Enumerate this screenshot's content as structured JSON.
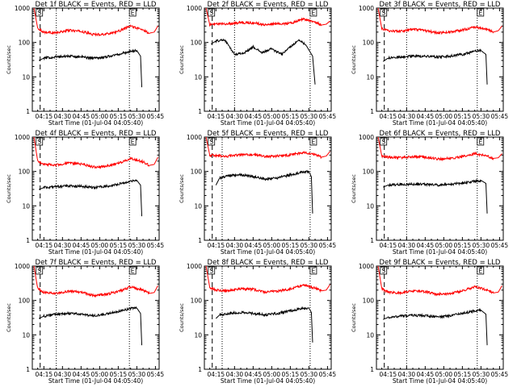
{
  "colors": {
    "events": "#000000",
    "lld": "#ff0000",
    "marker": "#000000"
  },
  "layout": {
    "rows": 3,
    "cols": 3
  },
  "panel_common": {
    "ylabel": "Counts/sec",
    "xlabel": "Start Time (01-Jul-04 04:05:40)",
    "yticks": [
      "1",
      "10",
      "100",
      "1000"
    ],
    "xticks": [
      "04:15",
      "04:30",
      "04:45",
      "05:00",
      "05:15",
      "05:30",
      "05:45"
    ],
    "marker_left": "S",
    "marker_right": "E"
  },
  "chart_data": [
    {
      "type": "line",
      "title": "Det 1f BLACK = Events, RED = LLD",
      "y_scale": "log",
      "ylim": [
        1,
        1000
      ],
      "xlim": [
        "04:05:40",
        "05:48:00"
      ],
      "ylabel": "Counts/sec",
      "xlabel": "Start Time (01-Jul-04 04:05:40)",
      "vlines": [
        "04:12:00",
        "04:25:00",
        "05:24:00"
      ],
      "series": [
        {
          "color": "red",
          "x": [
            "04:07:00",
            "04:10:00",
            "04:15:00",
            "04:25:00",
            "04:35:00",
            "04:45:00",
            "04:55:00",
            "05:05:00",
            "05:15:00",
            "05:25:00",
            "05:35:00",
            "05:40:00",
            "05:44:00",
            "05:47:00"
          ],
          "values": [
            1000,
            260,
            200,
            190,
            225,
            210,
            170,
            175,
            210,
            300,
            230,
            185,
            200,
            300
          ]
        },
        {
          "color": "black",
          "x": [
            "04:11:00",
            "04:15:00",
            "04:25:00",
            "04:35:00",
            "04:45:00",
            "04:55:00",
            "05:05:00",
            "05:15:00",
            "05:25:00",
            "05:30:00",
            "05:33:00",
            "05:34:00"
          ],
          "values": [
            30,
            35,
            38,
            40,
            38,
            35,
            38,
            45,
            55,
            58,
            40,
            5
          ]
        }
      ]
    },
    {
      "type": "line",
      "title": "Det 2f BLACK = Events, RED = LLD",
      "y_scale": "log",
      "ylim": [
        1,
        1000
      ],
      "xlim": [
        "04:05:40",
        "05:48:00"
      ],
      "ylabel": "Counts/sec",
      "xlabel": "Start Time (01-Jul-04 04:05:40)",
      "vlines": [
        "04:12:00",
        "04:30:00",
        "05:31:00"
      ],
      "series": [
        {
          "color": "red",
          "x": [
            "04:07:00",
            "04:10:00",
            "04:15:00",
            "04:25:00",
            "04:35:00",
            "04:45:00",
            "04:55:00",
            "05:05:00",
            "05:15:00",
            "05:25:00",
            "05:35:00",
            "05:40:00",
            "05:44:00",
            "05:47:00"
          ],
          "values": [
            1000,
            330,
            340,
            350,
            380,
            370,
            330,
            350,
            360,
            480,
            400,
            320,
            340,
            420
          ]
        },
        {
          "color": "black",
          "x": [
            "04:11:00",
            "04:15:00",
            "04:22:00",
            "04:30:00",
            "04:38:00",
            "04:45:00",
            "04:52:00",
            "05:00:00",
            "05:08:00",
            "05:15:00",
            "05:22:00",
            "05:28:00",
            "05:33:00",
            "05:35:00"
          ],
          "values": [
            90,
            110,
            120,
            45,
            50,
            75,
            50,
            65,
            45,
            75,
            120,
            80,
            40,
            6
          ]
        }
      ]
    },
    {
      "type": "line",
      "title": "Det 3f BLACK = Events, RED = LLD",
      "y_scale": "log",
      "ylim": [
        1,
        1000
      ],
      "xlim": [
        "04:05:40",
        "05:48:00"
      ],
      "ylabel": "Counts/sec",
      "xlabel": "Start Time (01-Jul-04 04:05:40)",
      "vlines": [
        "04:12:00",
        "04:30:00",
        "05:27:00"
      ],
      "series": [
        {
          "color": "red",
          "x": [
            "04:07:00",
            "04:10:00",
            "04:15:00",
            "04:25:00",
            "04:35:00",
            "04:45:00",
            "04:55:00",
            "05:05:00",
            "05:15:00",
            "05:25:00",
            "05:35:00",
            "05:40:00",
            "05:44:00",
            "05:47:00"
          ],
          "values": [
            1000,
            250,
            220,
            210,
            240,
            220,
            190,
            200,
            230,
            280,
            240,
            200,
            220,
            300
          ]
        },
        {
          "color": "black",
          "x": [
            "04:11:00",
            "04:15:00",
            "04:25:00",
            "04:35:00",
            "04:45:00",
            "04:55:00",
            "05:05:00",
            "05:15:00",
            "05:25:00",
            "05:30:00",
            "05:34:00",
            "05:35:00"
          ],
          "values": [
            28,
            35,
            38,
            40,
            40,
            38,
            40,
            45,
            55,
            58,
            45,
            6
          ]
        }
      ]
    },
    {
      "type": "line",
      "title": "Det 4f BLACK = Events, RED = LLD",
      "y_scale": "log",
      "ylim": [
        1,
        1000
      ],
      "xlim": [
        "04:05:40",
        "05:48:00"
      ],
      "ylabel": "Counts/sec",
      "xlabel": "Start Time (01-Jul-04 04:05:40)",
      "vlines": [
        "04:12:00",
        "04:25:00",
        "05:24:00"
      ],
      "series": [
        {
          "color": "red",
          "x": [
            "04:07:00",
            "04:10:00",
            "04:15:00",
            "04:25:00",
            "04:35:00",
            "04:45:00",
            "04:55:00",
            "05:05:00",
            "05:15:00",
            "05:25:00",
            "05:35:00",
            "05:40:00",
            "05:44:00",
            "05:47:00"
          ],
          "values": [
            1000,
            200,
            160,
            155,
            175,
            165,
            135,
            140,
            170,
            240,
            190,
            150,
            160,
            260
          ]
        },
        {
          "color": "black",
          "x": [
            "04:11:00",
            "04:15:00",
            "04:25:00",
            "04:35:00",
            "04:45:00",
            "04:55:00",
            "05:05:00",
            "05:15:00",
            "05:25:00",
            "05:30:00",
            "05:33:00",
            "05:34:00"
          ],
          "values": [
            30,
            34,
            36,
            38,
            37,
            34,
            37,
            43,
            52,
            55,
            40,
            5
          ]
        }
      ]
    },
    {
      "type": "line",
      "title": "Det 5f BLACK = Events, RED = LLD",
      "y_scale": "log",
      "ylim": [
        1,
        1000
      ],
      "xlim": [
        "04:05:40",
        "05:48:00"
      ],
      "ylabel": "Counts/sec",
      "xlabel": "Start Time (01-Jul-04 04:05:40)",
      "vlines": [
        "04:12:00",
        "04:20:00",
        "05:31:00"
      ],
      "series": [
        {
          "color": "red",
          "x": [
            "04:07:00",
            "04:10:00",
            "04:15:00",
            "04:25:00",
            "04:35:00",
            "04:45:00",
            "04:55:00",
            "05:05:00",
            "05:15:00",
            "05:25:00",
            "05:35:00",
            "05:40:00",
            "05:44:00",
            "05:47:00"
          ],
          "values": [
            1000,
            300,
            290,
            280,
            300,
            310,
            270,
            280,
            300,
            360,
            310,
            260,
            280,
            380
          ]
        },
        {
          "color": "black",
          "x": [
            "04:15:00",
            "04:18:00",
            "04:25:00",
            "04:35:00",
            "04:45:00",
            "04:55:00",
            "05:05:00",
            "05:15:00",
            "05:25:00",
            "05:30:00",
            "05:32:00",
            "05:33:00"
          ],
          "values": [
            40,
            65,
            75,
            80,
            70,
            60,
            65,
            80,
            95,
            100,
            70,
            6
          ]
        }
      ]
    },
    {
      "type": "line",
      "title": "Det 6f BLACK = Events, RED = LLD",
      "y_scale": "log",
      "ylim": [
        1,
        1000
      ],
      "xlim": [
        "04:05:40",
        "05:48:00"
      ],
      "ylabel": "Counts/sec",
      "xlabel": "Start Time (01-Jul-04 04:05:40)",
      "vlines": [
        "04:12:00",
        "04:30:00",
        "05:27:00"
      ],
      "series": [
        {
          "color": "red",
          "x": [
            "04:07:00",
            "04:10:00",
            "04:15:00",
            "04:25:00",
            "04:35:00",
            "04:45:00",
            "04:55:00",
            "05:05:00",
            "05:15:00",
            "05:25:00",
            "05:35:00",
            "05:40:00",
            "05:44:00",
            "05:47:00"
          ],
          "values": [
            1000,
            280,
            260,
            250,
            270,
            260,
            230,
            240,
            270,
            330,
            280,
            240,
            250,
            330
          ]
        },
        {
          "color": "black",
          "x": [
            "04:11:00",
            "04:15:00",
            "04:25:00",
            "04:35:00",
            "04:45:00",
            "04:55:00",
            "05:05:00",
            "05:15:00",
            "05:25:00",
            "05:30:00",
            "05:34:00",
            "05:35:00"
          ],
          "values": [
            35,
            40,
            42,
            43,
            42,
            40,
            42,
            46,
            52,
            55,
            45,
            6
          ]
        }
      ]
    },
    {
      "type": "line",
      "title": "Det 7f BLACK = Events, RED = LLD",
      "y_scale": "log",
      "ylim": [
        1,
        1000
      ],
      "xlim": [
        "04:05:40",
        "05:48:00"
      ],
      "ylabel": "Counts/sec",
      "xlabel": "Start Time (01-Jul-04 04:05:40)",
      "vlines": [
        "04:12:00",
        "04:25:00",
        "05:24:00"
      ],
      "series": [
        {
          "color": "red",
          "x": [
            "04:07:00",
            "04:10:00",
            "04:15:00",
            "04:25:00",
            "04:35:00",
            "04:45:00",
            "04:55:00",
            "05:05:00",
            "05:15:00",
            "05:25:00",
            "05:35:00",
            "05:40:00",
            "05:44:00",
            "05:47:00"
          ],
          "values": [
            1000,
            220,
            170,
            160,
            185,
            175,
            140,
            150,
            180,
            250,
            200,
            160,
            170,
            270
          ]
        },
        {
          "color": "black",
          "x": [
            "04:11:00",
            "04:15:00",
            "04:25:00",
            "04:35:00",
            "04:45:00",
            "04:55:00",
            "05:05:00",
            "05:15:00",
            "05:25:00",
            "05:30:00",
            "05:33:00",
            "05:34:00"
          ],
          "values": [
            30,
            35,
            40,
            42,
            40,
            36,
            40,
            48,
            58,
            60,
            42,
            5
          ]
        }
      ]
    },
    {
      "type": "line",
      "title": "Det 8f BLACK = Events, RED = LLD",
      "y_scale": "log",
      "ylim": [
        1,
        1000
      ],
      "xlim": [
        "04:05:40",
        "05:48:00"
      ],
      "ylabel": "Counts/sec",
      "xlabel": "Start Time (01-Jul-04 04:05:40)",
      "vlines": [
        "04:12:00",
        "04:20:00",
        "05:31:00"
      ],
      "series": [
        {
          "color": "red",
          "x": [
            "04:07:00",
            "04:10:00",
            "04:15:00",
            "04:25:00",
            "04:35:00",
            "04:45:00",
            "04:55:00",
            "05:05:00",
            "05:15:00",
            "05:25:00",
            "05:35:00",
            "05:40:00",
            "05:44:00",
            "05:47:00"
          ],
          "values": [
            1000,
            240,
            200,
            190,
            220,
            210,
            175,
            185,
            215,
            280,
            230,
            190,
            200,
            290
          ]
        },
        {
          "color": "black",
          "x": [
            "04:15:00",
            "04:18:00",
            "04:25:00",
            "04:35:00",
            "04:45:00",
            "04:55:00",
            "05:05:00",
            "05:15:00",
            "05:25:00",
            "05:30:00",
            "05:32:00",
            "05:33:00"
          ],
          "values": [
            30,
            38,
            42,
            45,
            42,
            38,
            42,
            50,
            58,
            60,
            45,
            6
          ]
        }
      ]
    },
    {
      "type": "line",
      "title": "Det 9f BLACK = Events, RED = LLD",
      "y_scale": "log",
      "ylim": [
        1,
        1000
      ],
      "xlim": [
        "04:05:40",
        "05:48:00"
      ],
      "ylabel": "Counts/sec",
      "xlabel": "Start Time (01-Jul-04 04:05:40)",
      "vlines": [
        "04:12:00",
        "04:30:00",
        "05:27:00"
      ],
      "series": [
        {
          "color": "red",
          "x": [
            "04:07:00",
            "04:10:00",
            "04:15:00",
            "04:25:00",
            "04:35:00",
            "04:45:00",
            "04:55:00",
            "05:05:00",
            "05:15:00",
            "05:25:00",
            "05:35:00",
            "05:40:00",
            "05:44:00",
            "05:47:00"
          ],
          "values": [
            1000,
            220,
            175,
            165,
            190,
            180,
            150,
            160,
            190,
            250,
            205,
            165,
            175,
            270
          ]
        },
        {
          "color": "black",
          "x": [
            "04:11:00",
            "04:15:00",
            "04:25:00",
            "04:35:00",
            "04:45:00",
            "04:55:00",
            "05:05:00",
            "05:15:00",
            "05:25:00",
            "05:30:00",
            "05:34:00",
            "05:35:00"
          ],
          "values": [
            28,
            32,
            35,
            37,
            36,
            33,
            36,
            42,
            50,
            52,
            40,
            5
          ]
        }
      ]
    }
  ]
}
